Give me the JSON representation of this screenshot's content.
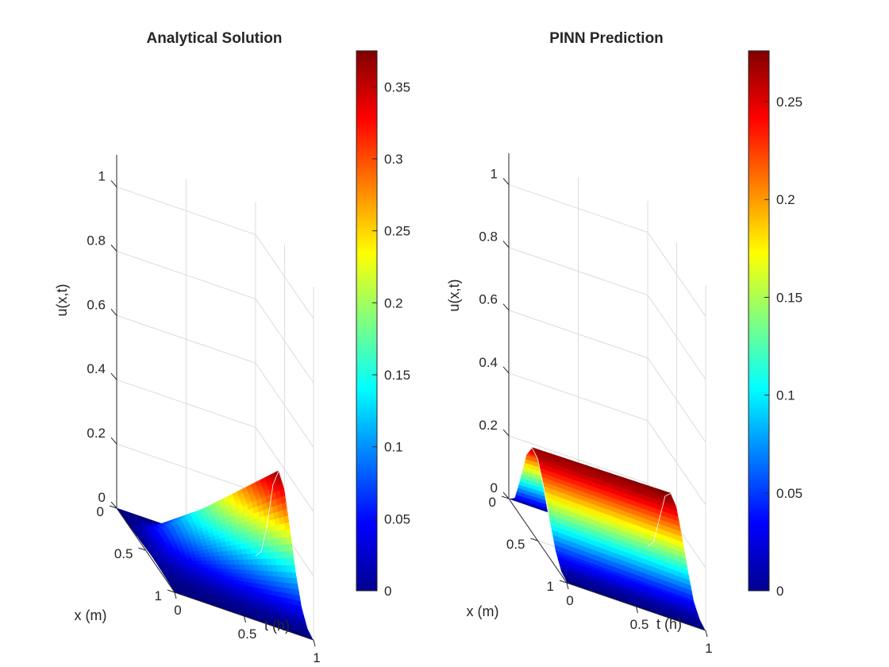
{
  "chart_data": [
    {
      "type": "surface",
      "title": "Analytical Solution",
      "xlabel": "x (m)",
      "ylabel": "t (h)",
      "zlabel": "u(x,t)",
      "x_ticks": [
        "0",
        "0.5",
        "1"
      ],
      "t_ticks": [
        "0",
        "0.5",
        "1"
      ],
      "z_ticks": [
        "0",
        "0.2",
        "0.4",
        "0.6",
        "0.8",
        "1"
      ],
      "zlim": [
        0,
        1.1
      ],
      "colormap": "jet",
      "colorbar": {
        "ticks": [
          "0",
          "0.05",
          "0.1",
          "0.15",
          "0.2",
          "0.25",
          "0.3",
          "0.35"
        ],
        "range": [
          0,
          0.375
        ]
      },
      "surface": {
        "x": [
          0,
          0.1,
          0.2,
          0.3,
          0.4,
          0.5,
          0.6,
          0.7,
          0.8,
          0.9,
          1
        ],
        "t": [
          0,
          0.25,
          0.5,
          0.75,
          1
        ],
        "u_at_t0": [
          0,
          0.0,
          0.0,
          0.001,
          0.003,
          0.005,
          0.007,
          0.006,
          0.004,
          0.001,
          0
        ],
        "u_at_t1": [
          0,
          0.04,
          0.15,
          0.3,
          0.37,
          0.34,
          0.24,
          0.13,
          0.05,
          0.01,
          0
        ]
      }
    },
    {
      "type": "surface",
      "title": "PINN Prediction",
      "xlabel": "x (m)",
      "ylabel": "t (h)",
      "zlabel": "u(x,t)",
      "x_ticks": [
        "0",
        "0.5",
        "1"
      ],
      "t_ticks": [
        "0",
        "0.5",
        "1"
      ],
      "z_ticks": [
        "0",
        "0.2",
        "0.4",
        "0.6",
        "0.8",
        "1"
      ],
      "zlim": [
        0,
        1.1
      ],
      "colormap": "jet",
      "colorbar": {
        "ticks": [
          "0",
          "0.05",
          "0.1",
          "0.15",
          "0.2",
          "0.25"
        ],
        "range": [
          0,
          0.276
        ]
      },
      "surface": {
        "x": [
          0,
          0.1,
          0.2,
          0.3,
          0.4,
          0.5,
          0.6,
          0.7,
          0.8,
          0.9,
          1
        ],
        "t": [
          0,
          0.25,
          0.5,
          0.75,
          1
        ],
        "u_at_t0": [
          0,
          0.03,
          0.12,
          0.22,
          0.27,
          0.26,
          0.2,
          0.12,
          0.05,
          0.01,
          0
        ],
        "u_at_t1": [
          0,
          0.04,
          0.14,
          0.24,
          0.276,
          0.26,
          0.19,
          0.11,
          0.04,
          0.01,
          0
        ]
      }
    }
  ]
}
